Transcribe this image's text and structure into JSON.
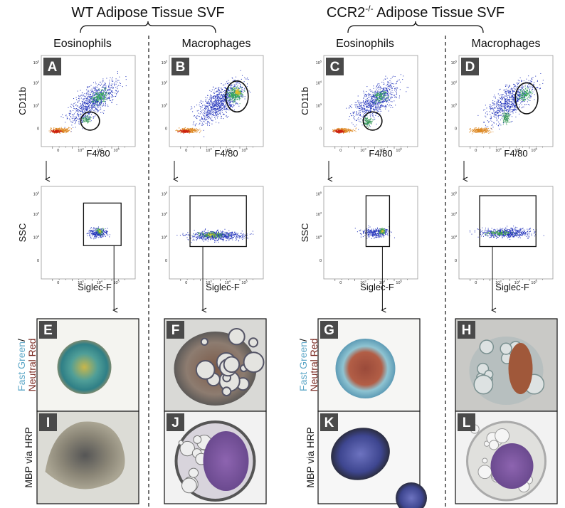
{
  "groups": [
    {
      "parts": [
        {
          "text": "WT Adipose Tissue SVF"
        }
      ]
    },
    {
      "parts": [
        {
          "text": "CCR2"
        },
        {
          "text": "-/-",
          "sup": true
        },
        {
          "text": " Adipose Tissue SVF"
        }
      ]
    }
  ],
  "columns": [
    "Eosinophils",
    "Macrophages",
    "Eosinophils",
    "Macrophages"
  ],
  "panels": [
    "A",
    "B",
    "C",
    "D",
    "E",
    "F",
    "G",
    "H",
    "I",
    "J",
    "K",
    "L"
  ],
  "axes": {
    "cd11b": "CD11b",
    "f480": "F4/80",
    "ssc": "SSC",
    "siglec": "Siglec-F"
  },
  "stain_labels": {
    "fast_green": "Fast Green",
    "slash": "/",
    "neutral_red": "Neutral Red",
    "mbp": "MBP via HRP"
  },
  "ticks": [
    {
      "text": "0"
    },
    {
      "text": "10",
      "sup": "3"
    },
    {
      "text": "10",
      "sup": "4"
    },
    {
      "text": "10",
      "sup": "5"
    }
  ]
}
